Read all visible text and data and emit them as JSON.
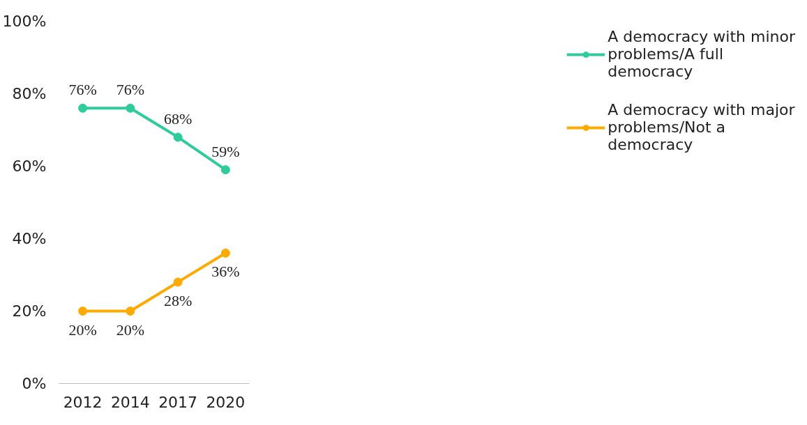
{
  "chart_data": {
    "type": "line",
    "categories": [
      "2012",
      "2014",
      "2017",
      "2020"
    ],
    "series": [
      {
        "name": "A democracy with minor problems/A full democracy",
        "color": "#2ecc9a",
        "values": [
          76,
          76,
          68,
          59
        ],
        "value_labels": [
          "76%",
          "76%",
          "68%",
          "59%"
        ]
      },
      {
        "name": "A democracy with major problems/Not a democracy",
        "color": "#ffaa00",
        "values": [
          20,
          20,
          28,
          36
        ],
        "value_labels": [
          "20%",
          "20%",
          "28%",
          "36%"
        ]
      }
    ],
    "ylim": [
      0,
      100
    ],
    "yticks": [
      {
        "value": 0,
        "label": "0%"
      },
      {
        "value": 20,
        "label": "20%"
      },
      {
        "value": 40,
        "label": "40%"
      },
      {
        "value": 60,
        "label": "60%"
      },
      {
        "value": 80,
        "label": "80%"
      },
      {
        "value": 100,
        "label": "100%"
      }
    ],
    "grid": false,
    "legend": "right",
    "marker": "circle",
    "line_style": "solid"
  }
}
